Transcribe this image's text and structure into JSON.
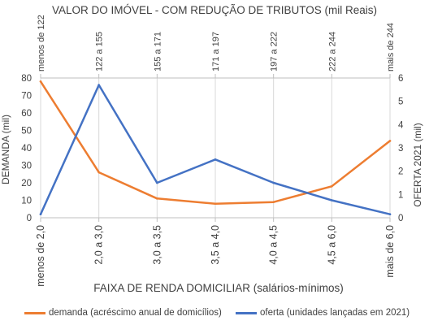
{
  "chart_data": {
    "type": "line",
    "title": "VALOR DO IMÓVEL - COM REDUÇÃO DE TRIBUTOS (mil Reais)",
    "xlabel": "FAIXA DE RENDA DOMICILIAR (salários-mínimos)",
    "ylabel_left": "DEMANDA (mil)",
    "ylabel_right": "OFERTA 2021 (mil)",
    "categories": [
      "menos de 2,0",
      "2,0 a 3,0",
      "3,0 a 3,5",
      "3,5 a 4,0",
      "4,0 a 4,5",
      "4,5 a 6,0",
      "mais de 6,0"
    ],
    "top_categories": [
      "menos de 122",
      "122 a 155",
      "155 a 171",
      "171 a 197",
      "197 a 222",
      "222 a 244",
      "mais de 244"
    ],
    "ylim_left": [
      0,
      80
    ],
    "yticks_left": [
      0,
      10,
      20,
      30,
      40,
      50,
      60,
      70,
      80
    ],
    "ylim_right": [
      0,
      6
    ],
    "yticks_right": [
      0,
      1,
      2,
      3,
      4,
      5,
      6
    ],
    "grid": "vertical",
    "legend_position": "bottom",
    "series": [
      {
        "name": "demanda (acréscimo anual de domicílios)",
        "axis": "left",
        "color": "#ED7D31",
        "values": [
          78,
          26,
          11,
          8,
          9,
          18,
          44
        ]
      },
      {
        "name": "oferta (unidades lançadas em 2021)",
        "axis": "right",
        "color": "#4472C4",
        "values": [
          0.15,
          5.7,
          1.5,
          2.5,
          1.5,
          0.75,
          0.15
        ]
      }
    ]
  }
}
